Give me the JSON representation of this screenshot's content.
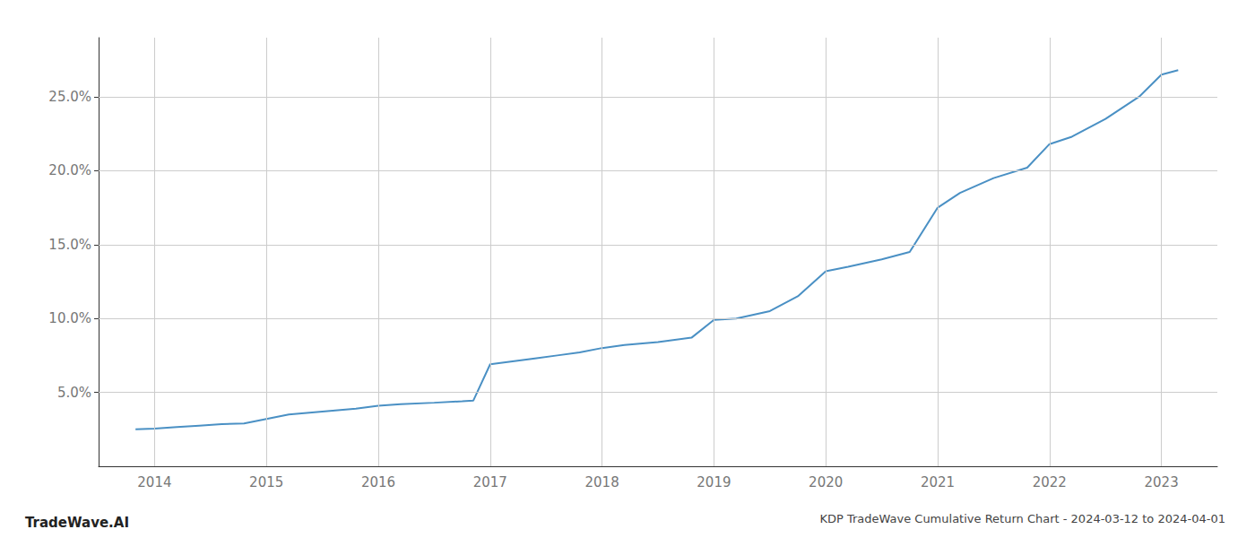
{
  "chart_data": {
    "type": "line",
    "title": "KDP TradeWave Cumulative Return Chart - 2024-03-12 to 2024-04-01",
    "annotations": [
      "TradeWave.AI"
    ],
    "color": "#4a90c4",
    "grid": true,
    "x": [
      2013.83,
      2014.0,
      2014.2,
      2014.4,
      2014.6,
      2014.8,
      2015.0,
      2015.2,
      2015.5,
      2015.8,
      2016.0,
      2016.2,
      2016.5,
      2016.75,
      2016.85,
      2017.0,
      2017.2,
      2017.4,
      2017.6,
      2017.8,
      2018.0,
      2018.2,
      2018.5,
      2018.8,
      2019.0,
      2019.2,
      2019.5,
      2019.75,
      2020.0,
      2020.2,
      2020.5,
      2020.75,
      2021.0,
      2021.2,
      2021.5,
      2021.8,
      2022.0,
      2022.2,
      2022.5,
      2022.8,
      2023.0,
      2023.15
    ],
    "values": [
      2.5,
      2.55,
      2.65,
      2.75,
      2.85,
      2.9,
      3.2,
      3.5,
      3.7,
      3.9,
      4.1,
      4.2,
      4.3,
      4.4,
      4.45,
      6.9,
      7.1,
      7.3,
      7.5,
      7.7,
      8.0,
      8.2,
      8.4,
      8.7,
      9.9,
      10.0,
      10.5,
      11.5,
      13.2,
      13.5,
      14.0,
      14.5,
      17.5,
      18.5,
      19.5,
      20.2,
      21.8,
      22.3,
      23.5,
      25.0,
      26.5,
      26.8
    ],
    "xlim": [
      2013.5,
      2023.5
    ],
    "xticks": [
      2014,
      2015,
      2016,
      2017,
      2018,
      2019,
      2020,
      2021,
      2022,
      2023
    ],
    "ylim": [
      0,
      29
    ],
    "yticks": [
      {
        "value": 5.0,
        "label": "5.0%"
      },
      {
        "value": 10.0,
        "label": "10.0%"
      },
      {
        "value": 15.0,
        "label": "15.0%"
      },
      {
        "value": 20.0,
        "label": "20.0%"
      },
      {
        "value": 25.0,
        "label": "25.0%"
      }
    ]
  }
}
